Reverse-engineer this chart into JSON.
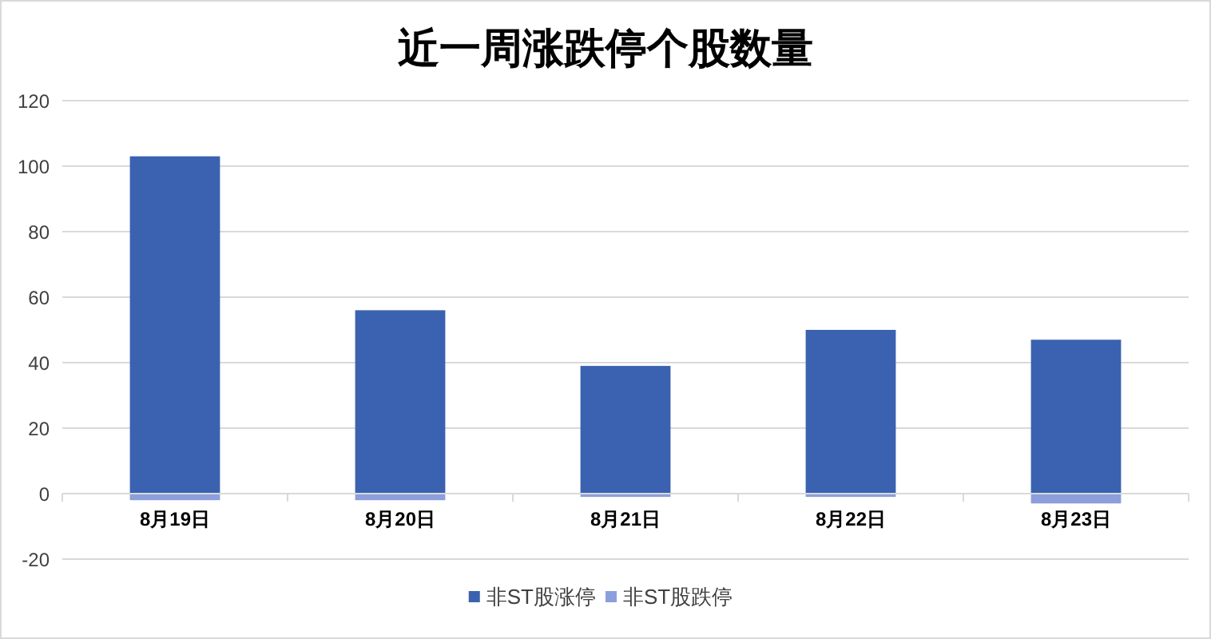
{
  "chart_data": {
    "type": "bar",
    "title": "近一周涨跌停个股数量",
    "categories": [
      "8月19日",
      "8月20日",
      "8月21日",
      "8月22日",
      "8月23日"
    ],
    "series": [
      {
        "name": "非ST股涨停",
        "color": "#3a62b0",
        "values": [
          103,
          56,
          39,
          50,
          47
        ]
      },
      {
        "name": "非ST股跌停",
        "color": "#8c9edb",
        "values": [
          -2,
          -2,
          -1,
          -1,
          -3
        ]
      }
    ],
    "stacked": true,
    "ylim": [
      -20,
      120
    ],
    "yticks": [
      -20,
      0,
      20,
      40,
      60,
      80,
      100,
      120
    ],
    "grid": "y",
    "legend": "bottom"
  }
}
